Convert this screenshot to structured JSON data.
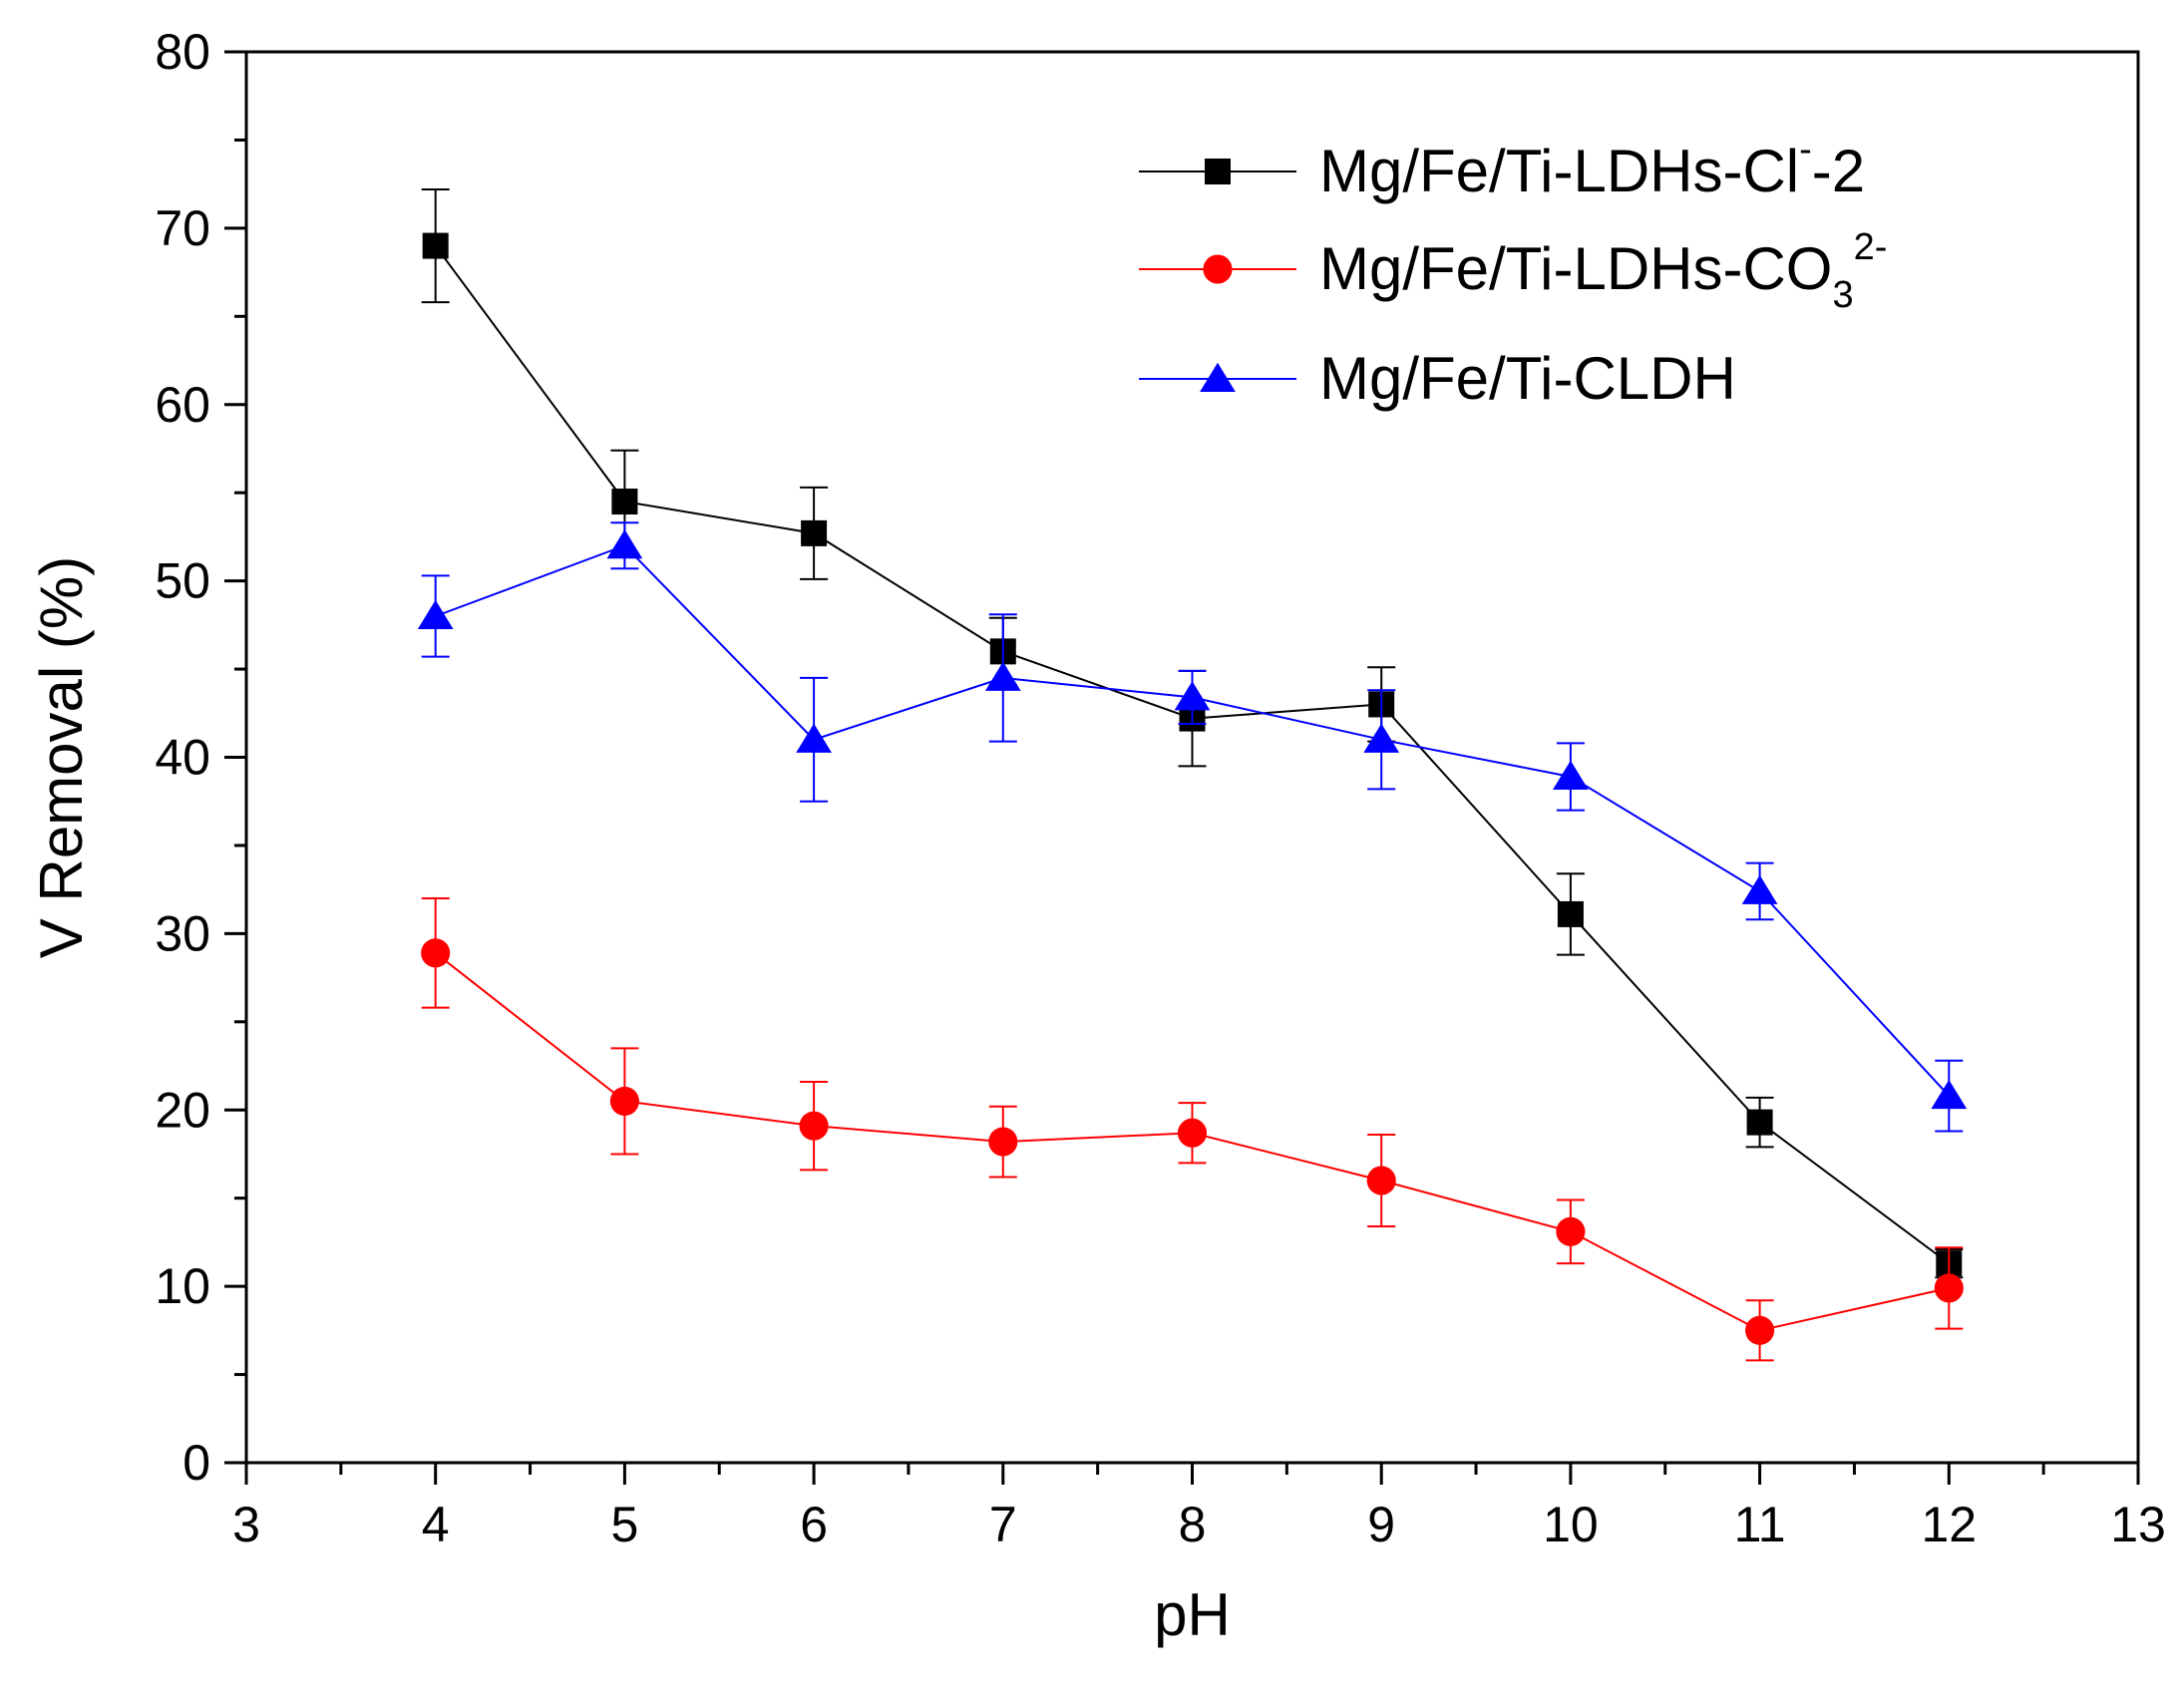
{
  "chart_data": {
    "type": "line",
    "title": "",
    "xlabel": "pH",
    "ylabel": "V Removal (%)",
    "xlim": [
      3,
      13
    ],
    "ylim": [
      0,
      80
    ],
    "xticks": [
      3,
      4,
      5,
      6,
      7,
      8,
      9,
      10,
      11,
      12,
      13
    ],
    "yticks": [
      0,
      10,
      20,
      30,
      40,
      50,
      60,
      70,
      80
    ],
    "grid": false,
    "legend_position": "top-right",
    "x": [
      4,
      5,
      6,
      7,
      8,
      9,
      10,
      11,
      12
    ],
    "series": [
      {
        "name_main": "Mg/Fe/Ti-LDHs-Cl",
        "name_sup": "-",
        "name_sub": "",
        "name_tail": "-2",
        "marker": "square",
        "color": "#000000",
        "values": [
          69.0,
          54.5,
          52.7,
          46.0,
          42.2,
          43.0,
          31.1,
          19.3,
          11.3
        ],
        "errors": [
          3.2,
          2.9,
          2.6,
          1.9,
          2.7,
          2.1,
          2.3,
          1.4,
          0.8
        ]
      },
      {
        "name_main": "Mg/Fe/Ti-LDHs-CO",
        "name_sup": "2-",
        "name_sub": "3",
        "name_tail": "",
        "marker": "circle",
        "color": "#ff0000",
        "values": [
          28.9,
          20.5,
          19.1,
          18.2,
          18.7,
          16.0,
          13.1,
          7.5,
          9.9
        ],
        "errors": [
          3.1,
          3.0,
          2.5,
          2.0,
          1.7,
          2.6,
          1.8,
          1.7,
          2.3
        ]
      },
      {
        "name_main": "Mg/Fe/Ti-CLDH",
        "name_sup": "",
        "name_sub": "",
        "name_tail": "",
        "marker": "triangle",
        "color": "#0000ff",
        "values": [
          48.0,
          52.0,
          41.0,
          44.5,
          43.4,
          41.0,
          38.9,
          32.4,
          20.8
        ],
        "errors": [
          2.3,
          1.3,
          3.5,
          3.6,
          1.5,
          2.8,
          1.9,
          1.6,
          2.0
        ]
      }
    ]
  }
}
